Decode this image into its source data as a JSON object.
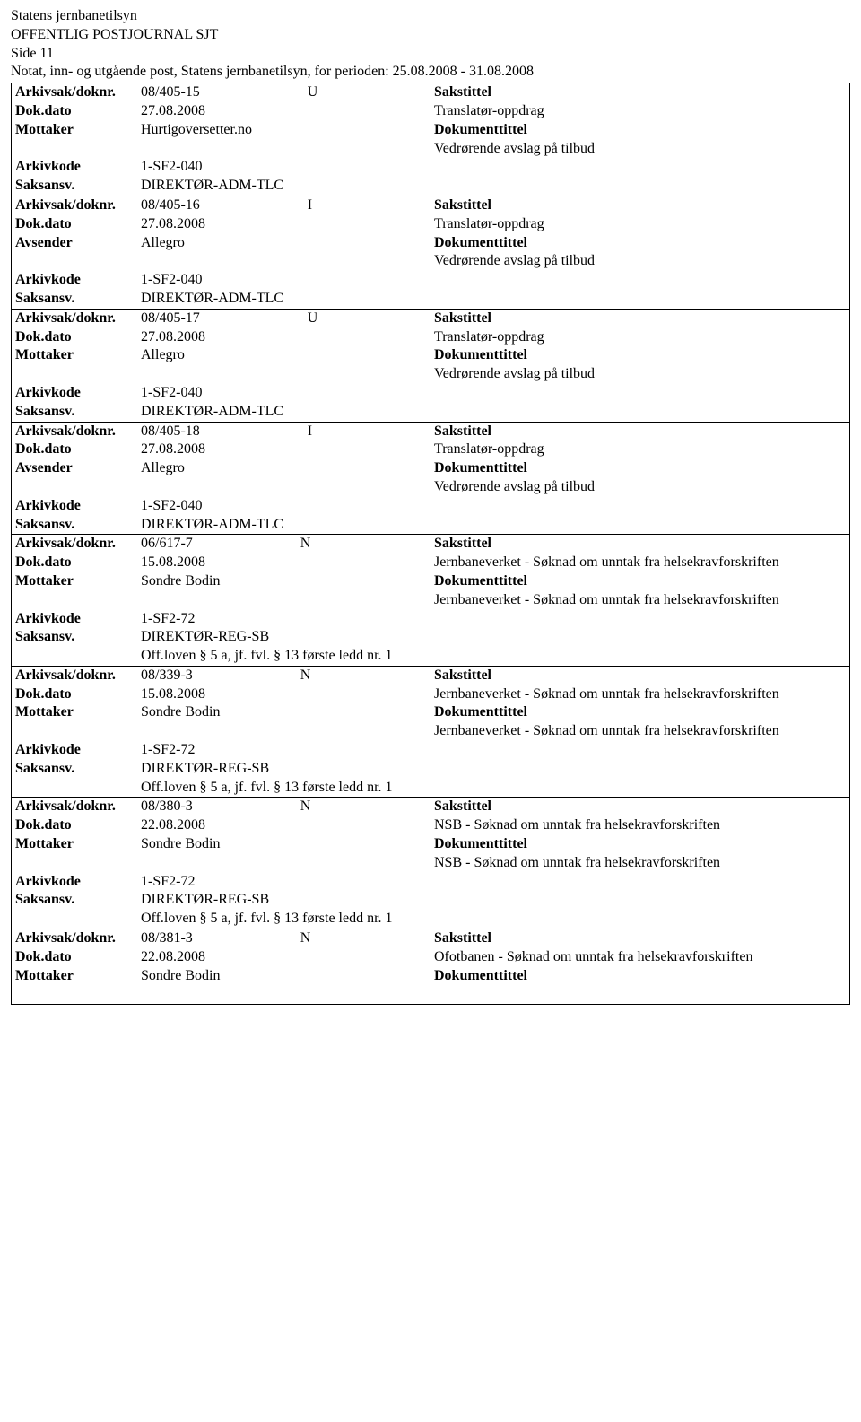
{
  "header": {
    "org": "Statens jernbanetilsyn",
    "journal_title": "OFFENTLIG POSTJOURNAL SJT",
    "page": "Side 11",
    "note": "Notat, inn- og utgående post, Statens jernbanetilsyn, for perioden: 25.08.2008 - 31.08.2008"
  },
  "labels": {
    "arkivsak": "Arkivsak/doknr.",
    "dokdato": "Dok.dato",
    "mottaker": "Mottaker",
    "avsender": "Avsender",
    "arkivkode": "Arkivkode",
    "saksansv": "Saksansv.",
    "sakstittel": "Sakstittel",
    "dokumenttittel": "Dokumenttittel"
  },
  "entries": [
    {
      "case_id": "08/405-15",
      "direction": "U",
      "date": "27.08.2008",
      "party_label": "Mottaker",
      "party": "Hurtigoversetter.no",
      "arkivkode": "1-SF2-040",
      "saksansv": "DIREKTØR-ADM-TLC",
      "sakstittel": "Translatør-oppdrag",
      "dokumenttittel": "Vedrørende avslag på tilbud",
      "exemption": ""
    },
    {
      "case_id": "08/405-16",
      "direction": "I",
      "date": "27.08.2008",
      "party_label": "Avsender",
      "party": "Allegro",
      "arkivkode": "1-SF2-040",
      "saksansv": "DIREKTØR-ADM-TLC",
      "sakstittel": "Translatør-oppdrag",
      "dokumenttittel": "Vedrørende avslag på tilbud",
      "exemption": ""
    },
    {
      "case_id": "08/405-17",
      "direction": "U",
      "date": "27.08.2008",
      "party_label": "Mottaker",
      "party": "Allegro",
      "arkivkode": "1-SF2-040",
      "saksansv": "DIREKTØR-ADM-TLC",
      "sakstittel": "Translatør-oppdrag",
      "dokumenttittel": "Vedrørende avslag på tilbud",
      "exemption": ""
    },
    {
      "case_id": "08/405-18",
      "direction": "I",
      "date": "27.08.2008",
      "party_label": "Avsender",
      "party": "Allegro",
      "arkivkode": "1-SF2-040",
      "saksansv": "DIREKTØR-ADM-TLC",
      "sakstittel": "Translatør-oppdrag",
      "dokumenttittel": "Vedrørende avslag på tilbud",
      "exemption": ""
    },
    {
      "case_id": "06/617-7",
      "direction": "N",
      "date": "15.08.2008",
      "party_label": "Mottaker",
      "party": "Sondre Bodin",
      "arkivkode": "1-SF2-72",
      "saksansv": "DIREKTØR-REG-SB",
      "sakstittel": "Jernbaneverket - Søknad om unntak fra helsekravforskriften",
      "dokumenttittel": "Jernbaneverket - Søknad om unntak fra helsekravforskriften",
      "exemption": "Off.loven § 5 a, jf. fvl. § 13 første ledd nr. 1"
    },
    {
      "case_id": "08/339-3",
      "direction": "N",
      "date": "15.08.2008",
      "party_label": "Mottaker",
      "party": "Sondre Bodin",
      "arkivkode": "1-SF2-72",
      "saksansv": "DIREKTØR-REG-SB",
      "sakstittel": "Jernbaneverket - Søknad om unntak fra helsekravforskriften",
      "dokumenttittel": "Jernbaneverket - Søknad om unntak fra helsekravforskriften",
      "exemption": "Off.loven § 5 a, jf. fvl. § 13 første ledd nr. 1"
    },
    {
      "case_id": "08/380-3",
      "direction": "N",
      "date": "22.08.2008",
      "party_label": "Mottaker",
      "party": "Sondre Bodin",
      "arkivkode": "1-SF2-72",
      "saksansv": "DIREKTØR-REG-SB",
      "sakstittel": "NSB - Søknad om unntak fra helsekravforskriften",
      "dokumenttittel": "NSB - Søknad om unntak fra helsekravforskriften",
      "exemption": "Off.loven § 5 a, jf. fvl. § 13 første ledd nr. 1"
    },
    {
      "case_id": "08/381-3",
      "direction": "N",
      "date": "22.08.2008",
      "party_label": "Mottaker",
      "party": "Sondre Bodin",
      "arkivkode": "",
      "saksansv": "",
      "sakstittel": "Ofotbanen - Søknad om unntak fra helsekravforskriften",
      "dokumenttittel": "",
      "exemption": "",
      "partial": true
    }
  ]
}
